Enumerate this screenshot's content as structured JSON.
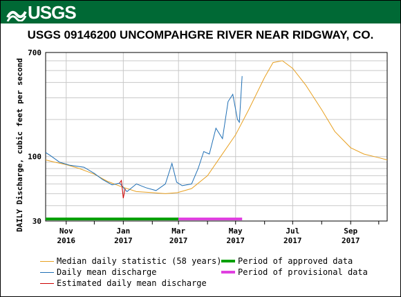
{
  "header": {
    "logo_text": "USGS"
  },
  "chart_data": {
    "type": "line",
    "title": "USGS 09146200 UNCOMPAHGRE RIVER NEAR RIDGWAY, CO.",
    "ylabel": "DAILY Discharge, cubic feet per second",
    "xlabel": "",
    "yscale": "log",
    "ylim": [
      30,
      700
    ],
    "xlim": [
      "2016-10-10",
      "2017-10-10"
    ],
    "yticks": [
      "30",
      "100",
      "700"
    ],
    "xticks": [
      {
        "date": "2016-11-01",
        "label1": "Nov",
        "label2": "2016"
      },
      {
        "date": "2017-01-01",
        "label1": "Jan",
        "label2": "2017"
      },
      {
        "date": "2017-03-01",
        "label1": "Mar",
        "label2": "2017"
      },
      {
        "date": "2017-05-01",
        "label1": "May",
        "label2": "2017"
      },
      {
        "date": "2017-07-01",
        "label1": "Jul",
        "label2": "2017"
      },
      {
        "date": "2017-09-01",
        "label1": "Sep",
        "label2": "2017"
      }
    ],
    "grid": true,
    "colors": {
      "median": "#e8a020",
      "mean": "#1f6fb5",
      "estimated": "#cc0000",
      "approved": "#00a000",
      "provisional": "#e040e0",
      "grid": "#c8c8c8"
    },
    "series": [
      {
        "name": "Median daily statistic (58 years)",
        "points": [
          [
            "2016-10-10",
            94
          ],
          [
            "2016-10-20",
            90
          ],
          [
            "2016-11-01",
            86
          ],
          [
            "2016-11-15",
            80
          ],
          [
            "2016-12-01",
            72
          ],
          [
            "2016-12-15",
            63
          ],
          [
            "2016-12-30",
            57
          ],
          [
            "2017-01-15",
            52
          ],
          [
            "2017-02-01",
            51
          ],
          [
            "2017-02-15",
            50
          ],
          [
            "2017-02-28",
            51
          ],
          [
            "2017-03-15",
            55
          ],
          [
            "2017-04-01",
            70
          ],
          [
            "2017-04-15",
            100
          ],
          [
            "2017-05-01",
            150
          ],
          [
            "2017-05-15",
            240
          ],
          [
            "2017-06-01",
            440
          ],
          [
            "2017-06-10",
            580
          ],
          [
            "2017-06-20",
            600
          ],
          [
            "2017-07-01",
            520
          ],
          [
            "2017-07-15",
            380
          ],
          [
            "2017-08-01",
            240
          ],
          [
            "2017-08-15",
            160
          ],
          [
            "2017-09-01",
            118
          ],
          [
            "2017-09-15",
            105
          ],
          [
            "2017-10-01",
            98
          ],
          [
            "2017-10-10",
            94
          ]
        ]
      },
      {
        "name": "Daily mean discharge",
        "points": [
          [
            "2016-10-10",
            108
          ],
          [
            "2016-10-15",
            102
          ],
          [
            "2016-10-25",
            90
          ],
          [
            "2016-11-05",
            85
          ],
          [
            "2016-11-20",
            82
          ],
          [
            "2016-12-01",
            73
          ],
          [
            "2016-12-10",
            65
          ],
          [
            "2016-12-20",
            59
          ],
          [
            "2016-12-28",
            61
          ],
          [
            "2017-01-05",
            52
          ],
          [
            "2017-01-15",
            60
          ],
          [
            "2017-01-25",
            56
          ],
          [
            "2017-02-05",
            53
          ],
          [
            "2017-02-15",
            60
          ],
          [
            "2017-02-22",
            88
          ],
          [
            "2017-02-27",
            62
          ],
          [
            "2017-03-05",
            58
          ],
          [
            "2017-03-15",
            60
          ],
          [
            "2017-03-22",
            80
          ],
          [
            "2017-03-28",
            110
          ],
          [
            "2017-04-03",
            105
          ],
          [
            "2017-04-10",
            170
          ],
          [
            "2017-04-17",
            140
          ],
          [
            "2017-04-23",
            280
          ],
          [
            "2017-04-28",
            320
          ],
          [
            "2017-05-03",
            200
          ],
          [
            "2017-05-05",
            190
          ],
          [
            "2017-05-08",
            450
          ]
        ]
      },
      {
        "name": "Estimated daily mean discharge",
        "points": [
          [
            "2016-12-28",
            61
          ],
          [
            "2016-12-30",
            64
          ],
          [
            "2017-01-01",
            46
          ],
          [
            "2017-01-03",
            55
          ]
        ]
      }
    ],
    "periods": [
      {
        "name": "Period of approved data",
        "start": "2016-10-10",
        "end": "2017-03-01"
      },
      {
        "name": "Period of provisional data",
        "start": "2017-03-01",
        "end": "2017-05-08"
      }
    ]
  },
  "legend": {
    "median": "Median daily statistic (58 years)",
    "mean": "Daily mean discharge",
    "estimated": "Estimated daily mean discharge",
    "approved": "Period of approved data",
    "provisional": "Period of provisional data"
  }
}
